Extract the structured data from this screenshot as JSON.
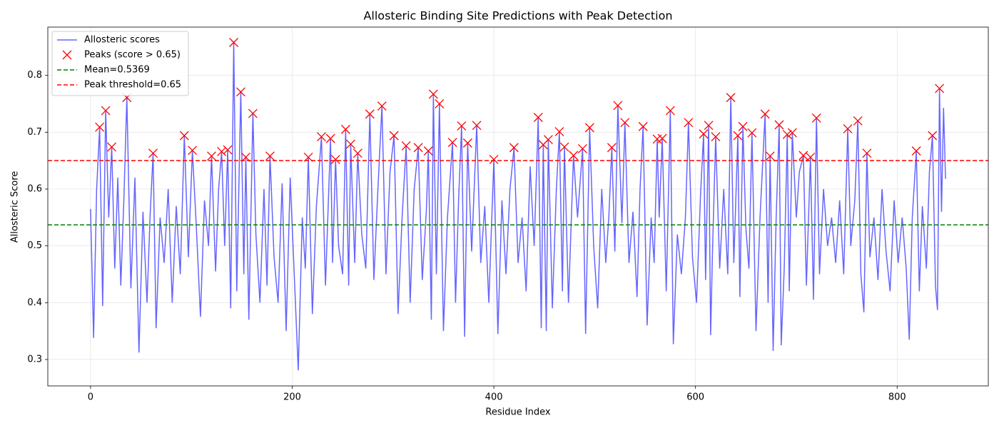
{
  "chart_data": {
    "type": "line",
    "title": "Allosteric Binding Site Predictions with Peak Detection",
    "xlabel": "Residue Index",
    "ylabel": "Allosteric Score",
    "xlim": [
      -42.4,
      890.4
    ],
    "ylim": [
      0.2535,
      0.885
    ],
    "xticks": [
      0,
      200,
      400,
      600,
      800
    ],
    "yticks": [
      0.3,
      0.4,
      0.5,
      0.6,
      0.7,
      0.8
    ],
    "grid": true,
    "legend": "upper left",
    "series": [
      {
        "name": "Allosteric scores",
        "color": "#0000ff",
        "alpha": 0.6,
        "marker": "none",
        "x": [
          0,
          3,
          6,
          9,
          12,
          15,
          18,
          21,
          24,
          27,
          30,
          33,
          36,
          40,
          44,
          48,
          52,
          56,
          59,
          62,
          65,
          69,
          73,
          77,
          81,
          85,
          89,
          93,
          97,
          101,
          105,
          109,
          113,
          117,
          120,
          124,
          127,
          130,
          133,
          136,
          139,
          142,
          145,
          149,
          152,
          154,
          157,
          161,
          164,
          168,
          172,
          175,
          178,
          182,
          186,
          190,
          194,
          198,
          202,
          206,
          210,
          213,
          216,
          220,
          224,
          229,
          233,
          238,
          240,
          243,
          246,
          250,
          253,
          256,
          258,
          262,
          265,
          269,
          273,
          277,
          281,
          285,
          289,
          293,
          297,
          301,
          305,
          309,
          313,
          317,
          321,
          325,
          329,
          333,
          335,
          338,
          340,
          343,
          346,
          350,
          354,
          359,
          362,
          365,
          368,
          371,
          374,
          378,
          383,
          387,
          391,
          395,
          400,
          404,
          408,
          412,
          416,
          420,
          424,
          428,
          432,
          436,
          440,
          444,
          447,
          449,
          452,
          454,
          458,
          462,
          465,
          468,
          470,
          474,
          479,
          483,
          488,
          491,
          495,
          499,
          503,
          507,
          511,
          514,
          517,
          520,
          523,
          527,
          530,
          534,
          538,
          542,
          545,
          548,
          552,
          556,
          559,
          562,
          564,
          567,
          571,
          575,
          578,
          582,
          586,
          590,
          593,
          597,
          601,
          605,
          608,
          610,
          613,
          615,
          617,
          620,
          624,
          628,
          632,
          635,
          638,
          642,
          644,
          647,
          650,
          653,
          656,
          660,
          664,
          669,
          672,
          674,
          677,
          680,
          683,
          685,
          688,
          691,
          693,
          696,
          700,
          703,
          707,
          710,
          714,
          717,
          720,
          723,
          727,
          731,
          735,
          739,
          743,
          747,
          751,
          754,
          758,
          761,
          764,
          767,
          770,
          773,
          777,
          781,
          785,
          789,
          793,
          797,
          801,
          805,
          809,
          812,
          815,
          819,
          822,
          825,
          829,
          832,
          835,
          838,
          840,
          842,
          844,
          846,
          848
        ],
        "values": [
          0.565,
          0.338,
          0.598,
          0.709,
          0.394,
          0.738,
          0.55,
          0.674,
          0.46,
          0.62,
          0.43,
          0.58,
          0.761,
          0.425,
          0.62,
          0.312,
          0.56,
          0.4,
          0.55,
          0.663,
          0.355,
          0.55,
          0.47,
          0.6,
          0.4,
          0.57,
          0.45,
          0.694,
          0.48,
          0.668,
          0.53,
          0.375,
          0.58,
          0.5,
          0.658,
          0.455,
          0.6,
          0.666,
          0.5,
          0.669,
          0.39,
          0.858,
          0.42,
          0.771,
          0.45,
          0.656,
          0.37,
          0.733,
          0.52,
          0.4,
          0.6,
          0.43,
          0.658,
          0.48,
          0.4,
          0.61,
          0.35,
          0.62,
          0.45,
          0.281,
          0.55,
          0.46,
          0.656,
          0.38,
          0.57,
          0.692,
          0.43,
          0.689,
          0.47,
          0.652,
          0.5,
          0.45,
          0.705,
          0.43,
          0.679,
          0.47,
          0.663,
          0.52,
          0.46,
          0.732,
          0.44,
          0.6,
          0.746,
          0.45,
          0.63,
          0.694,
          0.38,
          0.55,
          0.676,
          0.4,
          0.6,
          0.673,
          0.44,
          0.56,
          0.667,
          0.37,
          0.767,
          0.45,
          0.75,
          0.35,
          0.55,
          0.682,
          0.4,
          0.58,
          0.711,
          0.34,
          0.681,
          0.49,
          0.712,
          0.47,
          0.57,
          0.4,
          0.652,
          0.345,
          0.58,
          0.45,
          0.6,
          0.673,
          0.47,
          0.55,
          0.42,
          0.64,
          0.5,
          0.726,
          0.355,
          0.678,
          0.35,
          0.687,
          0.39,
          0.6,
          0.701,
          0.42,
          0.674,
          0.4,
          0.659,
          0.55,
          0.671,
          0.345,
          0.708,
          0.5,
          0.39,
          0.6,
          0.47,
          0.55,
          0.673,
          0.49,
          0.747,
          0.54,
          0.717,
          0.47,
          0.56,
          0.41,
          0.6,
          0.71,
          0.36,
          0.55,
          0.47,
          0.688,
          0.55,
          0.689,
          0.42,
          0.738,
          0.327,
          0.52,
          0.45,
          0.55,
          0.717,
          0.48,
          0.4,
          0.59,
          0.697,
          0.44,
          0.712,
          0.343,
          0.5,
          0.692,
          0.46,
          0.6,
          0.45,
          0.761,
          0.47,
          0.694,
          0.41,
          0.71,
          0.53,
          0.46,
          0.699,
          0.35,
          0.55,
          0.732,
          0.4,
          0.658,
          0.315,
          0.55,
          0.713,
          0.325,
          0.46,
          0.696,
          0.42,
          0.699,
          0.55,
          0.63,
          0.659,
          0.43,
          0.656,
          0.405,
          0.725,
          0.45,
          0.6,
          0.5,
          0.55,
          0.47,
          0.58,
          0.45,
          0.706,
          0.5,
          0.58,
          0.72,
          0.45,
          0.383,
          0.663,
          0.48,
          0.55,
          0.44,
          0.6,
          0.49,
          0.42,
          0.58,
          0.47,
          0.55,
          0.46,
          0.335,
          0.55,
          0.667,
          0.42,
          0.57,
          0.46,
          0.63,
          0.694,
          0.43,
          0.387,
          0.777,
          0.56,
          0.743,
          0.618
        ]
      },
      {
        "name": "Peaks (score > 0.65)",
        "color": "#ff0000",
        "marker": "x",
        "x": [
          9,
          15,
          21,
          36,
          62,
          93,
          101,
          120,
          130,
          136,
          142,
          149,
          154,
          161,
          178,
          216,
          229,
          238,
          243,
          253,
          258,
          265,
          277,
          289,
          301,
          313,
          325,
          335,
          340,
          346,
          359,
          368,
          374,
          383,
          400,
          420,
          444,
          449,
          454,
          465,
          470,
          479,
          488,
          495,
          517,
          523,
          530,
          548,
          562,
          567,
          575,
          593,
          608,
          613,
          620,
          635,
          642,
          647,
          656,
          669,
          674,
          683,
          691,
          696,
          707,
          714,
          720,
          751,
          761,
          770,
          819,
          835,
          842
        ],
        "values": [
          0.709,
          0.738,
          0.674,
          0.761,
          0.663,
          0.694,
          0.668,
          0.658,
          0.666,
          0.669,
          0.858,
          0.771,
          0.656,
          0.733,
          0.658,
          0.656,
          0.692,
          0.689,
          0.652,
          0.705,
          0.679,
          0.663,
          0.732,
          0.746,
          0.694,
          0.676,
          0.673,
          0.667,
          0.767,
          0.75,
          0.682,
          0.711,
          0.681,
          0.712,
          0.652,
          0.673,
          0.726,
          0.678,
          0.687,
          0.701,
          0.674,
          0.659,
          0.671,
          0.708,
          0.673,
          0.747,
          0.717,
          0.71,
          0.688,
          0.689,
          0.738,
          0.717,
          0.697,
          0.712,
          0.692,
          0.761,
          0.694,
          0.71,
          0.699,
          0.732,
          0.658,
          0.713,
          0.696,
          0.699,
          0.659,
          0.656,
          0.725,
          0.706,
          0.72,
          0.663,
          0.667,
          0.694,
          0.777
        ]
      }
    ],
    "hlines": [
      {
        "name": "Mean=0.5369",
        "value": 0.5369,
        "color": "#008000"
      },
      {
        "name": "Peak threshold=0.65",
        "value": 0.65,
        "color": "#ff0000"
      }
    ]
  }
}
